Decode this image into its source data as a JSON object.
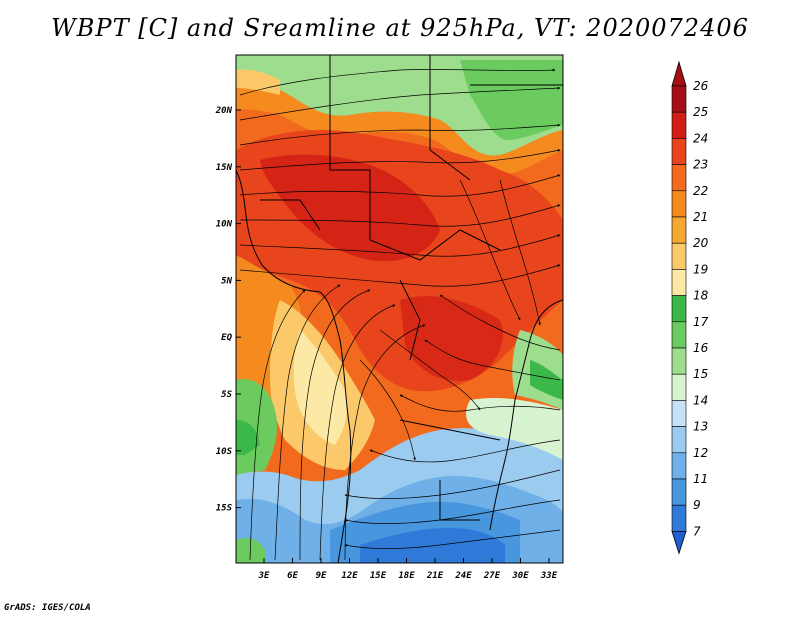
{
  "title": "WBPT [C] and Sreamline at 925hPa, VT: 2020072406",
  "footer": "GrADS: IGES/COLA",
  "axes": {
    "lon_labels": [
      "3E",
      "6E",
      "9E",
      "12E",
      "15E",
      "18E",
      "21E",
      "24E",
      "27E",
      "30E",
      "33E"
    ],
    "lat_labels": [
      "20N",
      "15N",
      "10N",
      "5N",
      "EQ",
      "5S",
      "10S",
      "15S"
    ]
  },
  "colorbar": {
    "labels": [
      "26",
      "25",
      "24",
      "23",
      "22",
      "21",
      "20",
      "19",
      "18",
      "17",
      "16",
      "15",
      "14",
      "13",
      "12",
      "11",
      "9",
      "7"
    ],
    "colors": [
      "#a50f15",
      "#d11e14",
      "#e8451c",
      "#f26a1d",
      "#f58a1f",
      "#f7a832",
      "#fbc96a",
      "#fde9a6",
      "#3cb84a",
      "#6ccb5f",
      "#9edd8e",
      "#d8f3d0",
      "#c6e2f7",
      "#9ccbf0",
      "#6fb0e8",
      "#4796de",
      "#2f7ad8"
    ],
    "min_color": "#1f5fd0",
    "max_color": "#a50f15"
  }
}
